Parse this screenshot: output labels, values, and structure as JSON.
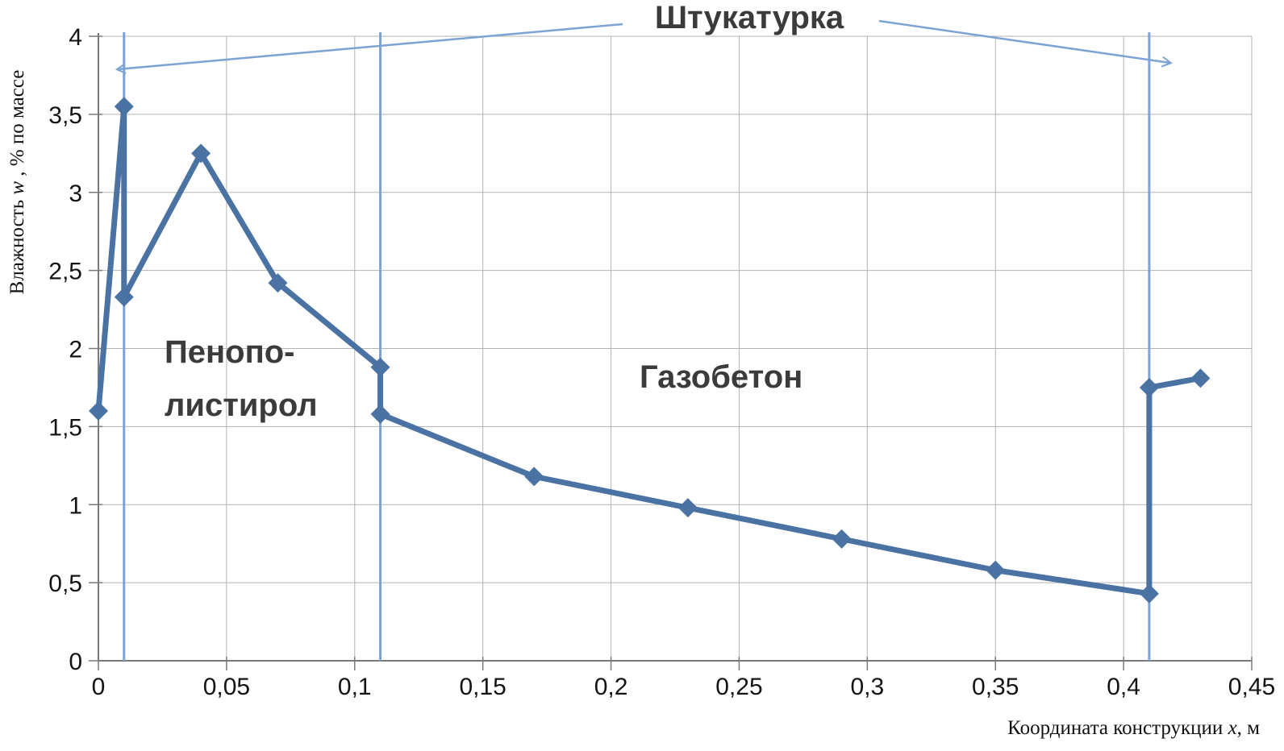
{
  "labels": {
    "shtukaturka": "Штукатурка",
    "foam_line1": "Пенопо-",
    "foam_line2": "листирол",
    "concrete": "Газобетон"
  },
  "axes": {
    "y_prefix": "Влажность ",
    "y_var": "w",
    "y_suffix": " , % по массе",
    "x_prefix": "Координата конструкции ",
    "x_var": "x",
    "x_suffix": ", м"
  },
  "chart_data": {
    "type": "line",
    "title": "",
    "xlabel": "Координата конструкции x, м",
    "ylabel": "Влажность w, % по массе",
    "xlim": [
      0,
      0.45
    ],
    "ylim": [
      0,
      4
    ],
    "grid": true,
    "points": [
      [
        0,
        1.6
      ],
      [
        0.01,
        3.55
      ],
      [
        0.01,
        2.33
      ],
      [
        0.04,
        3.25
      ],
      [
        0.07,
        2.42
      ],
      [
        0.11,
        1.88
      ],
      [
        0.11,
        1.58
      ],
      [
        0.17,
        1.18
      ],
      [
        0.23,
        0.98
      ],
      [
        0.29,
        0.78
      ],
      [
        0.35,
        0.58
      ],
      [
        0.41,
        0.43
      ],
      [
        0.41,
        1.75
      ],
      [
        0.43,
        1.81
      ]
    ],
    "x_ticks": [
      0,
      0.05,
      0.1,
      0.15,
      0.2,
      0.25,
      0.3,
      0.35,
      0.4,
      0.45
    ],
    "x_tick_labels": [
      "0",
      "0,05",
      "0,1",
      "0,15",
      "0,2",
      "0,25",
      "0,3",
      "0,35",
      "0,4",
      "0,45"
    ],
    "y_ticks": [
      0,
      0.5,
      1,
      1.5,
      2,
      2.5,
      3,
      3.5,
      4
    ],
    "y_tick_labels": [
      "0",
      "0,5",
      "1",
      "1,5",
      "2",
      "2,5",
      "3",
      "3,5",
      "4"
    ],
    "boundaries_x": [
      0.01,
      0.11,
      0.41
    ],
    "regions": [
      {
        "label": "Штукатурка",
        "x_range": [
          0,
          0.01
        ]
      },
      {
        "label": "Пенополистирол",
        "x_range": [
          0.01,
          0.11
        ]
      },
      {
        "label": "Газобетон",
        "x_range": [
          0.11,
          0.41
        ]
      },
      {
        "label": "Штукатурка",
        "x_range": [
          0.41,
          0.43
        ]
      }
    ],
    "series_color": "#4a72a3",
    "boundary_color": "#7da3d4",
    "grid_color": "#b3b3b3",
    "axis_color": "#7a7a7a",
    "tick_text_color": "#141414",
    "label_text_color": "#3b3b3b"
  }
}
